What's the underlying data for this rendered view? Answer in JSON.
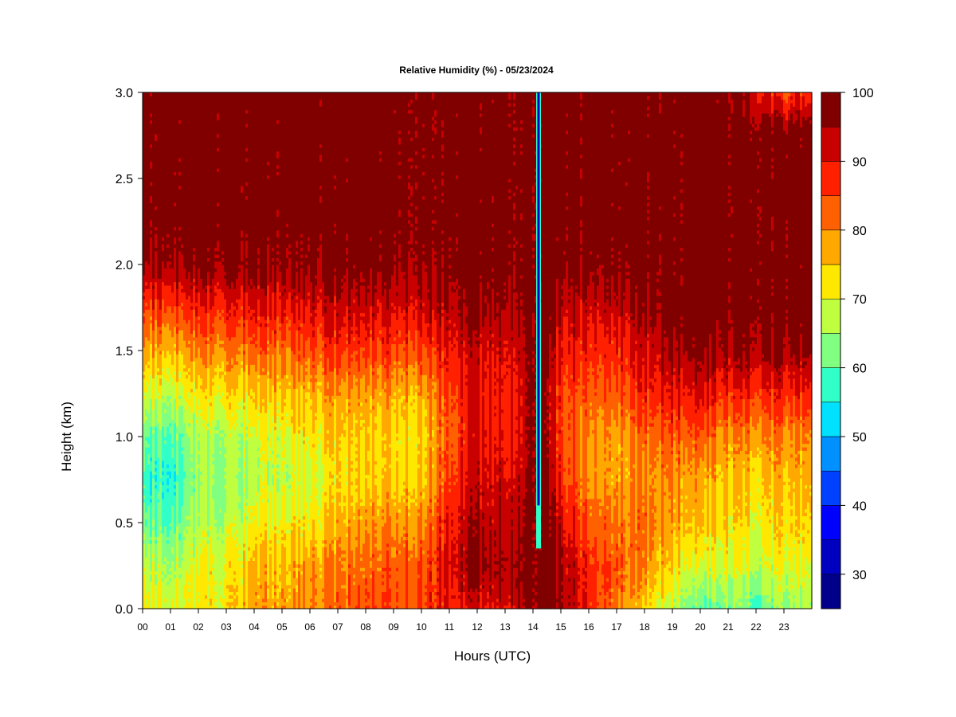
{
  "chart_data": {
    "type": "heatmap",
    "title": "Relative Humidity (%) - 05/23/2024",
    "xlabel": "Hours (UTC)",
    "ylabel": "Height (km)",
    "x_ticks": [
      "00",
      "01",
      "02",
      "03",
      "04",
      "05",
      "06",
      "07",
      "08",
      "09",
      "10",
      "11",
      "12",
      "13",
      "14",
      "15",
      "16",
      "17",
      "18",
      "19",
      "20",
      "21",
      "22",
      "23"
    ],
    "y_ticks": [
      "0.0",
      "0.5",
      "1.0",
      "1.5",
      "2.0",
      "2.5",
      "3.0"
    ],
    "xlim": [
      0,
      24
    ],
    "ylim": [
      0,
      3.0
    ],
    "colorbar": {
      "min": 25,
      "max": 100,
      "levels": [
        25,
        30,
        35,
        40,
        45,
        50,
        55,
        60,
        65,
        70,
        75,
        80,
        85,
        90,
        95,
        100
      ],
      "labels": [
        "30",
        "40",
        "50",
        "60",
        "70",
        "80",
        "90",
        "100"
      ],
      "colors": [
        "#00008b",
        "#0000c0",
        "#0000ff",
        "#0040ff",
        "#0090ff",
        "#00e0ff",
        "#30ffc8",
        "#80ff80",
        "#c0ff40",
        "#ffe800",
        "#ffa800",
        "#ff6000",
        "#ff2000",
        "#c80000",
        "#800000"
      ]
    },
    "profiles": [
      {
        "hour": 0,
        "rh": [
          72,
          68,
          62,
          58,
          62,
          70,
          78,
          86,
          96,
          99,
          99,
          99,
          99
        ]
      },
      {
        "hour": 1,
        "rh": [
          70,
          66,
          60,
          56,
          60,
          68,
          76,
          86,
          96,
          99,
          99,
          99,
          99
        ]
      },
      {
        "hour": 2,
        "rh": [
          72,
          70,
          66,
          64,
          66,
          72,
          80,
          88,
          97,
          99,
          99,
          99,
          99
        ]
      },
      {
        "hour": 3,
        "rh": [
          72,
          70,
          66,
          64,
          66,
          72,
          80,
          88,
          97,
          99,
          99,
          99,
          99
        ]
      },
      {
        "hour": 4,
        "rh": [
          78,
          76,
          70,
          66,
          68,
          74,
          82,
          90,
          97,
          99,
          99,
          99,
          99
        ]
      },
      {
        "hour": 5,
        "rh": [
          78,
          76,
          72,
          68,
          70,
          76,
          82,
          90,
          97,
          99,
          99,
          99,
          99
        ]
      },
      {
        "hour": 6,
        "rh": [
          80,
          78,
          72,
          68,
          72,
          76,
          84,
          91,
          97,
          99,
          99,
          99,
          99
        ]
      },
      {
        "hour": 7,
        "rh": [
          82,
          80,
          76,
          72,
          74,
          78,
          86,
          92,
          98,
          99,
          99,
          99,
          99
        ]
      },
      {
        "hour": 8,
        "rh": [
          84,
          82,
          78,
          74,
          74,
          78,
          86,
          92,
          98,
          99,
          99,
          99,
          99
        ]
      },
      {
        "hour": 9,
        "rh": [
          85,
          84,
          80,
          75,
          74,
          78,
          86,
          92,
          98,
          99,
          99,
          99,
          99
        ]
      },
      {
        "hour": 10,
        "rh": [
          86,
          85,
          80,
          76,
          74,
          78,
          86,
          93,
          98,
          99,
          99,
          99,
          99
        ]
      },
      {
        "hour": 11,
        "rh": [
          90,
          92,
          90,
          86,
          84,
          86,
          90,
          95,
          98,
          99,
          99,
          99,
          99
        ]
      },
      {
        "hour": 12,
        "rh": [
          90,
          96,
          94,
          92,
          90,
          90,
          92,
          96,
          99,
          99,
          99,
          99,
          99
        ]
      },
      {
        "hour": 13,
        "rh": [
          92,
          96,
          94,
          92,
          90,
          90,
          92,
          96,
          99,
          99,
          99,
          99,
          99
        ]
      },
      {
        "hour": 13.5,
        "rh": [
          96,
          98,
          96,
          94,
          92,
          92,
          94,
          97,
          99,
          99,
          99,
          99,
          99
        ]
      },
      {
        "hour": 14,
        "rh": [
          99,
          99,
          99,
          99,
          99,
          99,
          99,
          99,
          99,
          99,
          99,
          99,
          99
        ]
      },
      {
        "hour": 14.5,
        "rh": [
          99,
          99,
          96,
          94,
          92,
          92,
          94,
          96,
          99,
          99,
          99,
          99,
          99
        ]
      },
      {
        "hour": 15,
        "rh": [
          96,
          96,
          92,
          88,
          86,
          86,
          90,
          94,
          98,
          99,
          99,
          99,
          99
        ]
      },
      {
        "hour": 16,
        "rh": [
          88,
          88,
          84,
          80,
          80,
          84,
          88,
          93,
          98,
          99,
          99,
          99,
          99
        ]
      },
      {
        "hour": 17,
        "rh": [
          82,
          84,
          82,
          78,
          78,
          84,
          88,
          93,
          98,
          99,
          99,
          99,
          99
        ]
      },
      {
        "hour": 18,
        "rh": [
          74,
          80,
          82,
          80,
          82,
          88,
          92,
          96,
          99,
          99,
          99,
          99,
          99
        ]
      },
      {
        "hour": 19,
        "rh": [
          68,
          74,
          78,
          80,
          84,
          90,
          96,
          99,
          99,
          99,
          99,
          99,
          99
        ]
      },
      {
        "hour": 20,
        "rh": [
          58,
          68,
          74,
          76,
          82,
          90,
          96,
          99,
          99,
          99,
          99,
          99,
          99
        ]
      },
      {
        "hour": 21,
        "rh": [
          64,
          70,
          74,
          76,
          80,
          88,
          96,
          99,
          99,
          99,
          99,
          99,
          98
        ]
      },
      {
        "hour": 22,
        "rh": [
          60,
          68,
          72,
          74,
          80,
          88,
          96,
          99,
          99,
          99,
          99,
          99,
          92
        ]
      },
      {
        "hour": 23,
        "rh": [
          64,
          70,
          74,
          76,
          80,
          88,
          96,
          99,
          99,
          99,
          99,
          99,
          86
        ]
      },
      {
        "hour": 24,
        "rh": [
          66,
          70,
          74,
          76,
          80,
          88,
          96,
          99,
          99,
          99,
          99,
          99,
          88
        ]
      }
    ],
    "profile_heights_km": [
      0.0,
      0.25,
      0.5,
      0.75,
      1.0,
      1.25,
      1.5,
      1.75,
      2.0,
      2.25,
      2.5,
      2.75,
      3.0
    ]
  }
}
